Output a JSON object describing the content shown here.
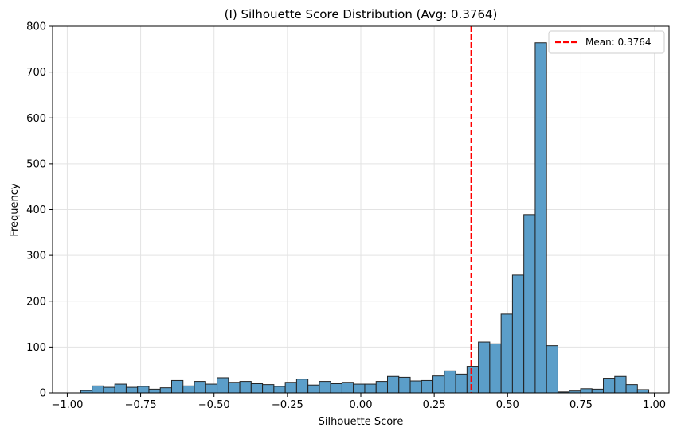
{
  "chart_data": {
    "type": "bar",
    "title": "(I) Silhouette Score Distribution (Avg: 0.3764)",
    "xlabel": "Silhouette Score",
    "ylabel": "Frequency",
    "xlim": [
      -1.05,
      1.05
    ],
    "ylim": [
      0,
      800
    ],
    "xticks": [
      -1.0,
      -0.75,
      -0.5,
      -0.25,
      0.0,
      0.25,
      0.5,
      0.75,
      1.0
    ],
    "xtick_labels": [
      "−1.00",
      "−0.75",
      "−0.50",
      "−0.25",
      "0.00",
      "0.25",
      "0.50",
      "0.75",
      "1.00"
    ],
    "yticks": [
      0,
      100,
      200,
      300,
      400,
      500,
      600,
      700,
      800
    ],
    "ytick_labels": [
      "0",
      "100",
      "200",
      "300",
      "400",
      "500",
      "600",
      "700",
      "800"
    ],
    "grid": true,
    "bar_color": "#5b9ec9",
    "bar_edge_color": "#222222",
    "bins": {
      "start": -0.954,
      "width": 0.0387,
      "counts": [
        5,
        15,
        12,
        19,
        12,
        14,
        8,
        11,
        27,
        15,
        25,
        19,
        33,
        23,
        25,
        20,
        18,
        14,
        23,
        30,
        17,
        25,
        20,
        23,
        19,
        19,
        25,
        36,
        34,
        26,
        27,
        37,
        48,
        41,
        58,
        111,
        107,
        172,
        257,
        389,
        764,
        103,
        2,
        4,
        9,
        8,
        32,
        36,
        18,
        7
      ]
    },
    "mean_line": {
      "value": 0.3764,
      "color": "#ff0000"
    },
    "legend": {
      "position": "top-right",
      "entries": [
        "Mean: 0.3764"
      ]
    }
  }
}
